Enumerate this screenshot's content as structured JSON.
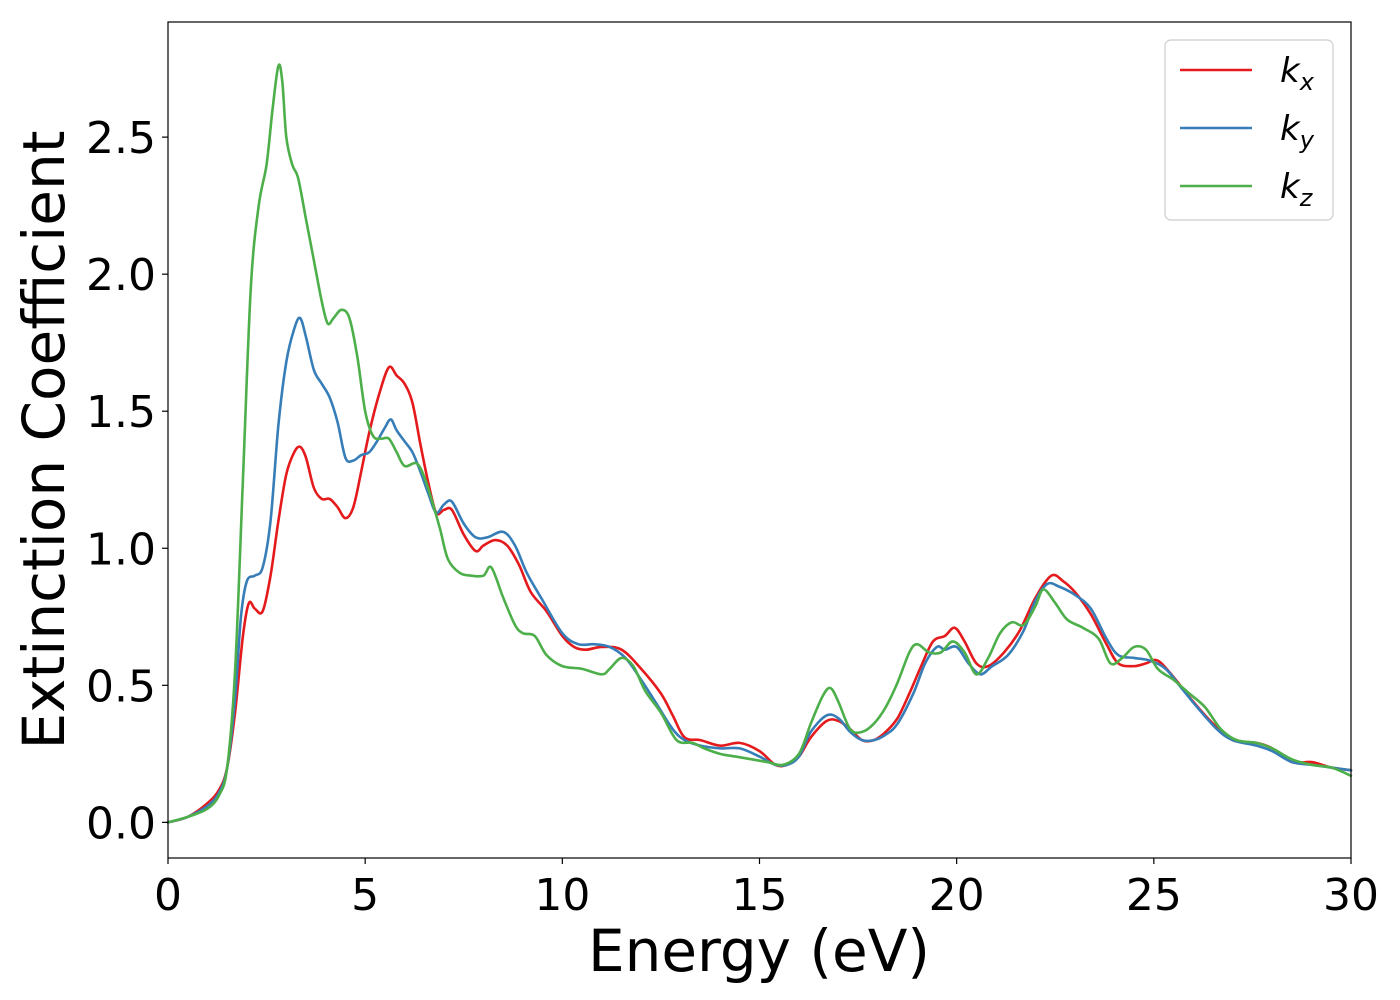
{
  "chart_data": {
    "type": "line",
    "xlabel": "Energy (eV)",
    "ylabel": "Extinction Coefficient",
    "xlim": [
      0,
      30
    ],
    "ylim": [
      -0.13,
      2.92
    ],
    "xticks": [
      0,
      5,
      10,
      15,
      20,
      25,
      30
    ],
    "xtick_labels": [
      "0",
      "5",
      "10",
      "15",
      "20",
      "25",
      "30"
    ],
    "yticks": [
      0.0,
      0.5,
      1.0,
      1.5,
      2.0,
      2.5
    ],
    "ytick_labels": [
      "0.0",
      "0.5",
      "1.0",
      "1.5",
      "2.0",
      "2.5"
    ],
    "grid": false,
    "legend_position": "top-right",
    "series": [
      {
        "name": "k",
        "subscript": "x",
        "color": "#e41a1c",
        "points": [
          [
            0,
            0.0
          ],
          [
            0.5,
            0.02
          ],
          [
            1.0,
            0.07
          ],
          [
            1.3,
            0.12
          ],
          [
            1.5,
            0.2
          ],
          [
            1.7,
            0.4
          ],
          [
            1.9,
            0.68
          ],
          [
            2.05,
            0.8
          ],
          [
            2.2,
            0.78
          ],
          [
            2.4,
            0.77
          ],
          [
            2.6,
            0.9
          ],
          [
            2.8,
            1.1
          ],
          [
            3.0,
            1.27
          ],
          [
            3.2,
            1.35
          ],
          [
            3.35,
            1.37
          ],
          [
            3.5,
            1.33
          ],
          [
            3.7,
            1.22
          ],
          [
            3.9,
            1.18
          ],
          [
            4.1,
            1.18
          ],
          [
            4.3,
            1.15
          ],
          [
            4.5,
            1.11
          ],
          [
            4.7,
            1.15
          ],
          [
            4.9,
            1.28
          ],
          [
            5.1,
            1.42
          ],
          [
            5.35,
            1.56
          ],
          [
            5.6,
            1.66
          ],
          [
            5.8,
            1.63
          ],
          [
            6.0,
            1.6
          ],
          [
            6.2,
            1.53
          ],
          [
            6.4,
            1.38
          ],
          [
            6.6,
            1.24
          ],
          [
            6.8,
            1.13
          ],
          [
            7.0,
            1.14
          ],
          [
            7.2,
            1.14
          ],
          [
            7.5,
            1.05
          ],
          [
            7.8,
            0.99
          ],
          [
            8.0,
            1.01
          ],
          [
            8.3,
            1.03
          ],
          [
            8.6,
            1.01
          ],
          [
            8.9,
            0.94
          ],
          [
            9.2,
            0.84
          ],
          [
            9.6,
            0.77
          ],
          [
            10.0,
            0.68
          ],
          [
            10.3,
            0.64
          ],
          [
            10.6,
            0.63
          ],
          [
            11.0,
            0.64
          ],
          [
            11.5,
            0.63
          ],
          [
            12.0,
            0.56
          ],
          [
            12.5,
            0.47
          ],
          [
            12.8,
            0.39
          ],
          [
            13.1,
            0.31
          ],
          [
            13.5,
            0.3
          ],
          [
            14.0,
            0.28
          ],
          [
            14.5,
            0.29
          ],
          [
            15.0,
            0.26
          ],
          [
            15.4,
            0.21
          ],
          [
            15.7,
            0.21
          ],
          [
            16.0,
            0.24
          ],
          [
            16.3,
            0.31
          ],
          [
            16.7,
            0.37
          ],
          [
            17.0,
            0.37
          ],
          [
            17.3,
            0.34
          ],
          [
            17.6,
            0.3
          ],
          [
            17.9,
            0.3
          ],
          [
            18.2,
            0.33
          ],
          [
            18.5,
            0.38
          ],
          [
            18.8,
            0.47
          ],
          [
            19.1,
            0.57
          ],
          [
            19.4,
            0.66
          ],
          [
            19.7,
            0.68
          ],
          [
            19.95,
            0.71
          ],
          [
            20.2,
            0.66
          ],
          [
            20.5,
            0.58
          ],
          [
            20.8,
            0.57
          ],
          [
            21.2,
            0.62
          ],
          [
            21.6,
            0.7
          ],
          [
            22.0,
            0.82
          ],
          [
            22.4,
            0.9
          ],
          [
            22.7,
            0.88
          ],
          [
            23.0,
            0.84
          ],
          [
            23.4,
            0.76
          ],
          [
            23.8,
            0.65
          ],
          [
            24.1,
            0.58
          ],
          [
            24.5,
            0.57
          ],
          [
            24.8,
            0.58
          ],
          [
            25.1,
            0.59
          ],
          [
            25.5,
            0.53
          ],
          [
            26.0,
            0.44
          ],
          [
            26.5,
            0.36
          ],
          [
            27.0,
            0.3
          ],
          [
            27.6,
            0.29
          ],
          [
            28.0,
            0.27
          ],
          [
            28.5,
            0.22
          ],
          [
            29.0,
            0.22
          ],
          [
            29.5,
            0.2
          ],
          [
            30.0,
            0.19
          ]
        ]
      },
      {
        "name": "k",
        "subscript": "y",
        "color": "#377eb8",
        "points": [
          [
            0,
            0.0
          ],
          [
            0.5,
            0.02
          ],
          [
            1.0,
            0.06
          ],
          [
            1.3,
            0.11
          ],
          [
            1.5,
            0.2
          ],
          [
            1.7,
            0.45
          ],
          [
            1.85,
            0.75
          ],
          [
            2.0,
            0.88
          ],
          [
            2.2,
            0.9
          ],
          [
            2.4,
            0.93
          ],
          [
            2.6,
            1.1
          ],
          [
            2.8,
            1.45
          ],
          [
            3.0,
            1.68
          ],
          [
            3.2,
            1.8
          ],
          [
            3.35,
            1.84
          ],
          [
            3.5,
            1.77
          ],
          [
            3.7,
            1.65
          ],
          [
            3.9,
            1.6
          ],
          [
            4.1,
            1.55
          ],
          [
            4.3,
            1.46
          ],
          [
            4.5,
            1.33
          ],
          [
            4.7,
            1.32
          ],
          [
            4.9,
            1.34
          ],
          [
            5.1,
            1.35
          ],
          [
            5.3,
            1.39
          ],
          [
            5.5,
            1.44
          ],
          [
            5.65,
            1.47
          ],
          [
            5.8,
            1.43
          ],
          [
            6.0,
            1.39
          ],
          [
            6.2,
            1.35
          ],
          [
            6.4,
            1.28
          ],
          [
            6.6,
            1.2
          ],
          [
            6.8,
            1.13
          ],
          [
            7.0,
            1.16
          ],
          [
            7.2,
            1.17
          ],
          [
            7.5,
            1.09
          ],
          [
            7.8,
            1.04
          ],
          [
            8.1,
            1.04
          ],
          [
            8.5,
            1.06
          ],
          [
            8.8,
            1.01
          ],
          [
            9.1,
            0.91
          ],
          [
            9.5,
            0.81
          ],
          [
            10.0,
            0.69
          ],
          [
            10.4,
            0.65
          ],
          [
            10.8,
            0.65
          ],
          [
            11.2,
            0.64
          ],
          [
            11.6,
            0.6
          ],
          [
            12.0,
            0.52
          ],
          [
            12.4,
            0.43
          ],
          [
            12.8,
            0.34
          ],
          [
            13.1,
            0.3
          ],
          [
            13.5,
            0.28
          ],
          [
            14.0,
            0.27
          ],
          [
            14.5,
            0.27
          ],
          [
            15.0,
            0.24
          ],
          [
            15.4,
            0.21
          ],
          [
            15.7,
            0.21
          ],
          [
            16.0,
            0.24
          ],
          [
            16.3,
            0.33
          ],
          [
            16.7,
            0.39
          ],
          [
            17.0,
            0.38
          ],
          [
            17.3,
            0.33
          ],
          [
            17.6,
            0.3
          ],
          [
            17.9,
            0.3
          ],
          [
            18.2,
            0.32
          ],
          [
            18.5,
            0.36
          ],
          [
            18.9,
            0.47
          ],
          [
            19.2,
            0.58
          ],
          [
            19.5,
            0.64
          ],
          [
            19.7,
            0.63
          ],
          [
            20.0,
            0.64
          ],
          [
            20.3,
            0.58
          ],
          [
            20.6,
            0.54
          ],
          [
            20.9,
            0.57
          ],
          [
            21.3,
            0.61
          ],
          [
            21.7,
            0.7
          ],
          [
            22.0,
            0.81
          ],
          [
            22.3,
            0.87
          ],
          [
            22.6,
            0.86
          ],
          [
            23.0,
            0.83
          ],
          [
            23.4,
            0.78
          ],
          [
            23.8,
            0.67
          ],
          [
            24.1,
            0.61
          ],
          [
            24.5,
            0.6
          ],
          [
            24.9,
            0.59
          ],
          [
            25.3,
            0.56
          ],
          [
            25.7,
            0.49
          ],
          [
            26.1,
            0.42
          ],
          [
            26.6,
            0.34
          ],
          [
            27.0,
            0.3
          ],
          [
            27.6,
            0.28
          ],
          [
            28.0,
            0.26
          ],
          [
            28.5,
            0.22
          ],
          [
            29.0,
            0.21
          ],
          [
            29.5,
            0.2
          ],
          [
            30.0,
            0.19
          ]
        ]
      },
      {
        "name": "k",
        "subscript": "z",
        "color": "#4daf4a",
        "points": [
          [
            0,
            0.0
          ],
          [
            0.5,
            0.02
          ],
          [
            1.0,
            0.05
          ],
          [
            1.3,
            0.1
          ],
          [
            1.5,
            0.2
          ],
          [
            1.7,
            0.55
          ],
          [
            1.9,
            1.25
          ],
          [
            2.1,
            1.95
          ],
          [
            2.3,
            2.25
          ],
          [
            2.5,
            2.4
          ],
          [
            2.65,
            2.6
          ],
          [
            2.8,
            2.76
          ],
          [
            2.9,
            2.7
          ],
          [
            3.0,
            2.5
          ],
          [
            3.15,
            2.4
          ],
          [
            3.3,
            2.35
          ],
          [
            3.5,
            2.2
          ],
          [
            3.7,
            2.05
          ],
          [
            3.9,
            1.9
          ],
          [
            4.05,
            1.82
          ],
          [
            4.2,
            1.84
          ],
          [
            4.4,
            1.87
          ],
          [
            4.6,
            1.84
          ],
          [
            4.8,
            1.7
          ],
          [
            5.0,
            1.5
          ],
          [
            5.2,
            1.41
          ],
          [
            5.4,
            1.4
          ],
          [
            5.6,
            1.4
          ],
          [
            5.8,
            1.35
          ],
          [
            6.0,
            1.3
          ],
          [
            6.3,
            1.31
          ],
          [
            6.5,
            1.26
          ],
          [
            6.7,
            1.17
          ],
          [
            6.9,
            1.07
          ],
          [
            7.1,
            0.96
          ],
          [
            7.4,
            0.91
          ],
          [
            7.7,
            0.9
          ],
          [
            8.0,
            0.9
          ],
          [
            8.2,
            0.93
          ],
          [
            8.5,
            0.82
          ],
          [
            8.8,
            0.72
          ],
          [
            9.0,
            0.69
          ],
          [
            9.3,
            0.68
          ],
          [
            9.6,
            0.61
          ],
          [
            10.0,
            0.57
          ],
          [
            10.5,
            0.56
          ],
          [
            11.0,
            0.54
          ],
          [
            11.2,
            0.56
          ],
          [
            11.5,
            0.6
          ],
          [
            11.8,
            0.57
          ],
          [
            12.1,
            0.48
          ],
          [
            12.5,
            0.4
          ],
          [
            12.9,
            0.3
          ],
          [
            13.3,
            0.29
          ],
          [
            13.6,
            0.27
          ],
          [
            14.0,
            0.25
          ],
          [
            14.4,
            0.24
          ],
          [
            14.8,
            0.23
          ],
          [
            15.2,
            0.22
          ],
          [
            15.6,
            0.21
          ],
          [
            16.0,
            0.25
          ],
          [
            16.3,
            0.36
          ],
          [
            16.6,
            0.46
          ],
          [
            16.8,
            0.49
          ],
          [
            17.0,
            0.44
          ],
          [
            17.3,
            0.34
          ],
          [
            17.6,
            0.33
          ],
          [
            17.9,
            0.36
          ],
          [
            18.2,
            0.42
          ],
          [
            18.5,
            0.51
          ],
          [
            18.8,
            0.62
          ],
          [
            19.0,
            0.65
          ],
          [
            19.3,
            0.62
          ],
          [
            19.6,
            0.62
          ],
          [
            19.9,
            0.66
          ],
          [
            20.2,
            0.62
          ],
          [
            20.5,
            0.54
          ],
          [
            20.8,
            0.6
          ],
          [
            21.1,
            0.69
          ],
          [
            21.4,
            0.73
          ],
          [
            21.7,
            0.72
          ],
          [
            22.0,
            0.79
          ],
          [
            22.2,
            0.85
          ],
          [
            22.5,
            0.8
          ],
          [
            22.8,
            0.74
          ],
          [
            23.2,
            0.71
          ],
          [
            23.6,
            0.67
          ],
          [
            23.9,
            0.58
          ],
          [
            24.2,
            0.6
          ],
          [
            24.5,
            0.64
          ],
          [
            24.8,
            0.63
          ],
          [
            25.1,
            0.56
          ],
          [
            25.5,
            0.52
          ],
          [
            25.9,
            0.47
          ],
          [
            26.3,
            0.42
          ],
          [
            26.7,
            0.34
          ],
          [
            27.1,
            0.3
          ],
          [
            27.6,
            0.29
          ],
          [
            28.0,
            0.27
          ],
          [
            28.5,
            0.23
          ],
          [
            29.0,
            0.21
          ],
          [
            29.5,
            0.2
          ],
          [
            30.0,
            0.17
          ]
        ]
      }
    ]
  }
}
